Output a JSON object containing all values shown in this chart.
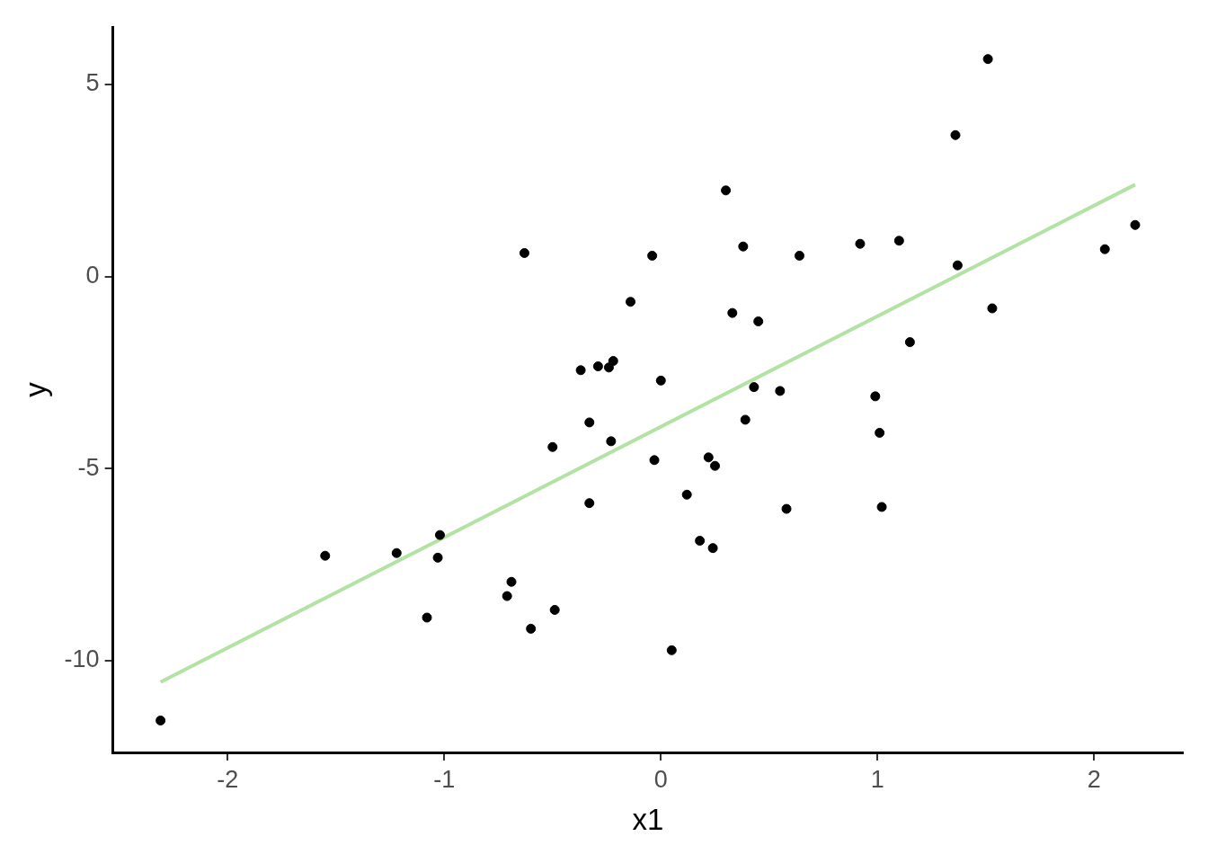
{
  "chart_data": {
    "type": "scatter",
    "xlabel": "x1",
    "ylabel": "y",
    "xlim": [
      -2.53,
      2.41
    ],
    "ylim": [
      -12.39,
      6.49
    ],
    "xticks": [
      -2,
      -1,
      0,
      1,
      2
    ],
    "yticks": [
      -10,
      -5,
      0,
      5
    ],
    "grid": false,
    "series": [
      {
        "marker": "circle",
        "color": "#000000",
        "x": [
          -2.31,
          -1.55,
          -1.22,
          -1.02,
          -1.03,
          -1.08,
          -0.71,
          -0.69,
          -0.6,
          -0.49,
          -0.63,
          -0.5,
          -0.37,
          -0.33,
          -0.33,
          -0.29,
          -0.24,
          -0.22,
          -0.23,
          -0.14,
          -0.04,
          -0.03,
          0.0,
          0.05,
          0.12,
          0.18,
          0.22,
          0.24,
          0.25,
          0.3,
          0.33,
          0.38,
          0.39,
          0.43,
          0.45,
          0.55,
          0.58,
          0.64,
          0.92,
          0.99,
          1.01,
          1.02,
          1.1,
          1.15,
          1.36,
          1.37,
          1.51,
          1.53,
          2.05,
          2.19
        ],
        "values": [
          -11.56,
          -7.27,
          -7.2,
          -6.73,
          -7.32,
          -8.88,
          -8.32,
          -7.95,
          -9.17,
          -8.68,
          0.61,
          -4.44,
          -2.44,
          -3.8,
          -5.9,
          -2.34,
          -2.37,
          -2.2,
          -4.29,
          -0.66,
          0.54,
          -4.78,
          -2.71,
          -9.73,
          -5.68,
          -6.88,
          -4.71,
          -7.07,
          -4.93,
          2.24,
          -0.95,
          0.78,
          -3.73,
          -2.88,
          -1.17,
          -2.98,
          -6.05,
          0.54,
          0.85,
          -3.12,
          -4.07,
          -6.0,
          0.93,
          -1.71,
          3.68,
          0.29,
          5.66,
          -0.83,
          0.71,
          1.34
        ]
      },
      {
        "type": "line",
        "marker": "none",
        "color": "#b2e2a4",
        "x": [
          -2.31,
          2.19
        ],
        "values": [
          -10.56,
          2.39
        ]
      }
    ]
  }
}
